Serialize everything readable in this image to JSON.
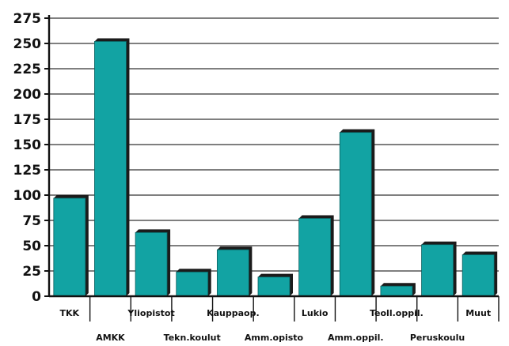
{
  "chart_data": {
    "type": "bar",
    "categories": [
      "TKK",
      "AMKK",
      "Yliopistot",
      "Tekn.koulut",
      "Kauppaop.",
      "Amm.opisto",
      "Lukio",
      "Amm.oppil.",
      "Teoll.oppil.",
      "Peruskoulu",
      "Muut"
    ],
    "values": [
      97,
      252,
      63,
      24,
      46,
      19,
      77,
      162,
      10,
      51,
      41
    ],
    "ylim": [
      0,
      275
    ],
    "yticks": [
      "0",
      "25",
      "50",
      "75",
      "100",
      "125",
      "150",
      "175",
      "200",
      "225",
      "250",
      "275"
    ],
    "grid": true,
    "colors": {
      "bar": "#12A3A3",
      "bar_shadow": "#1b1b1b",
      "grid": "#333333"
    }
  }
}
